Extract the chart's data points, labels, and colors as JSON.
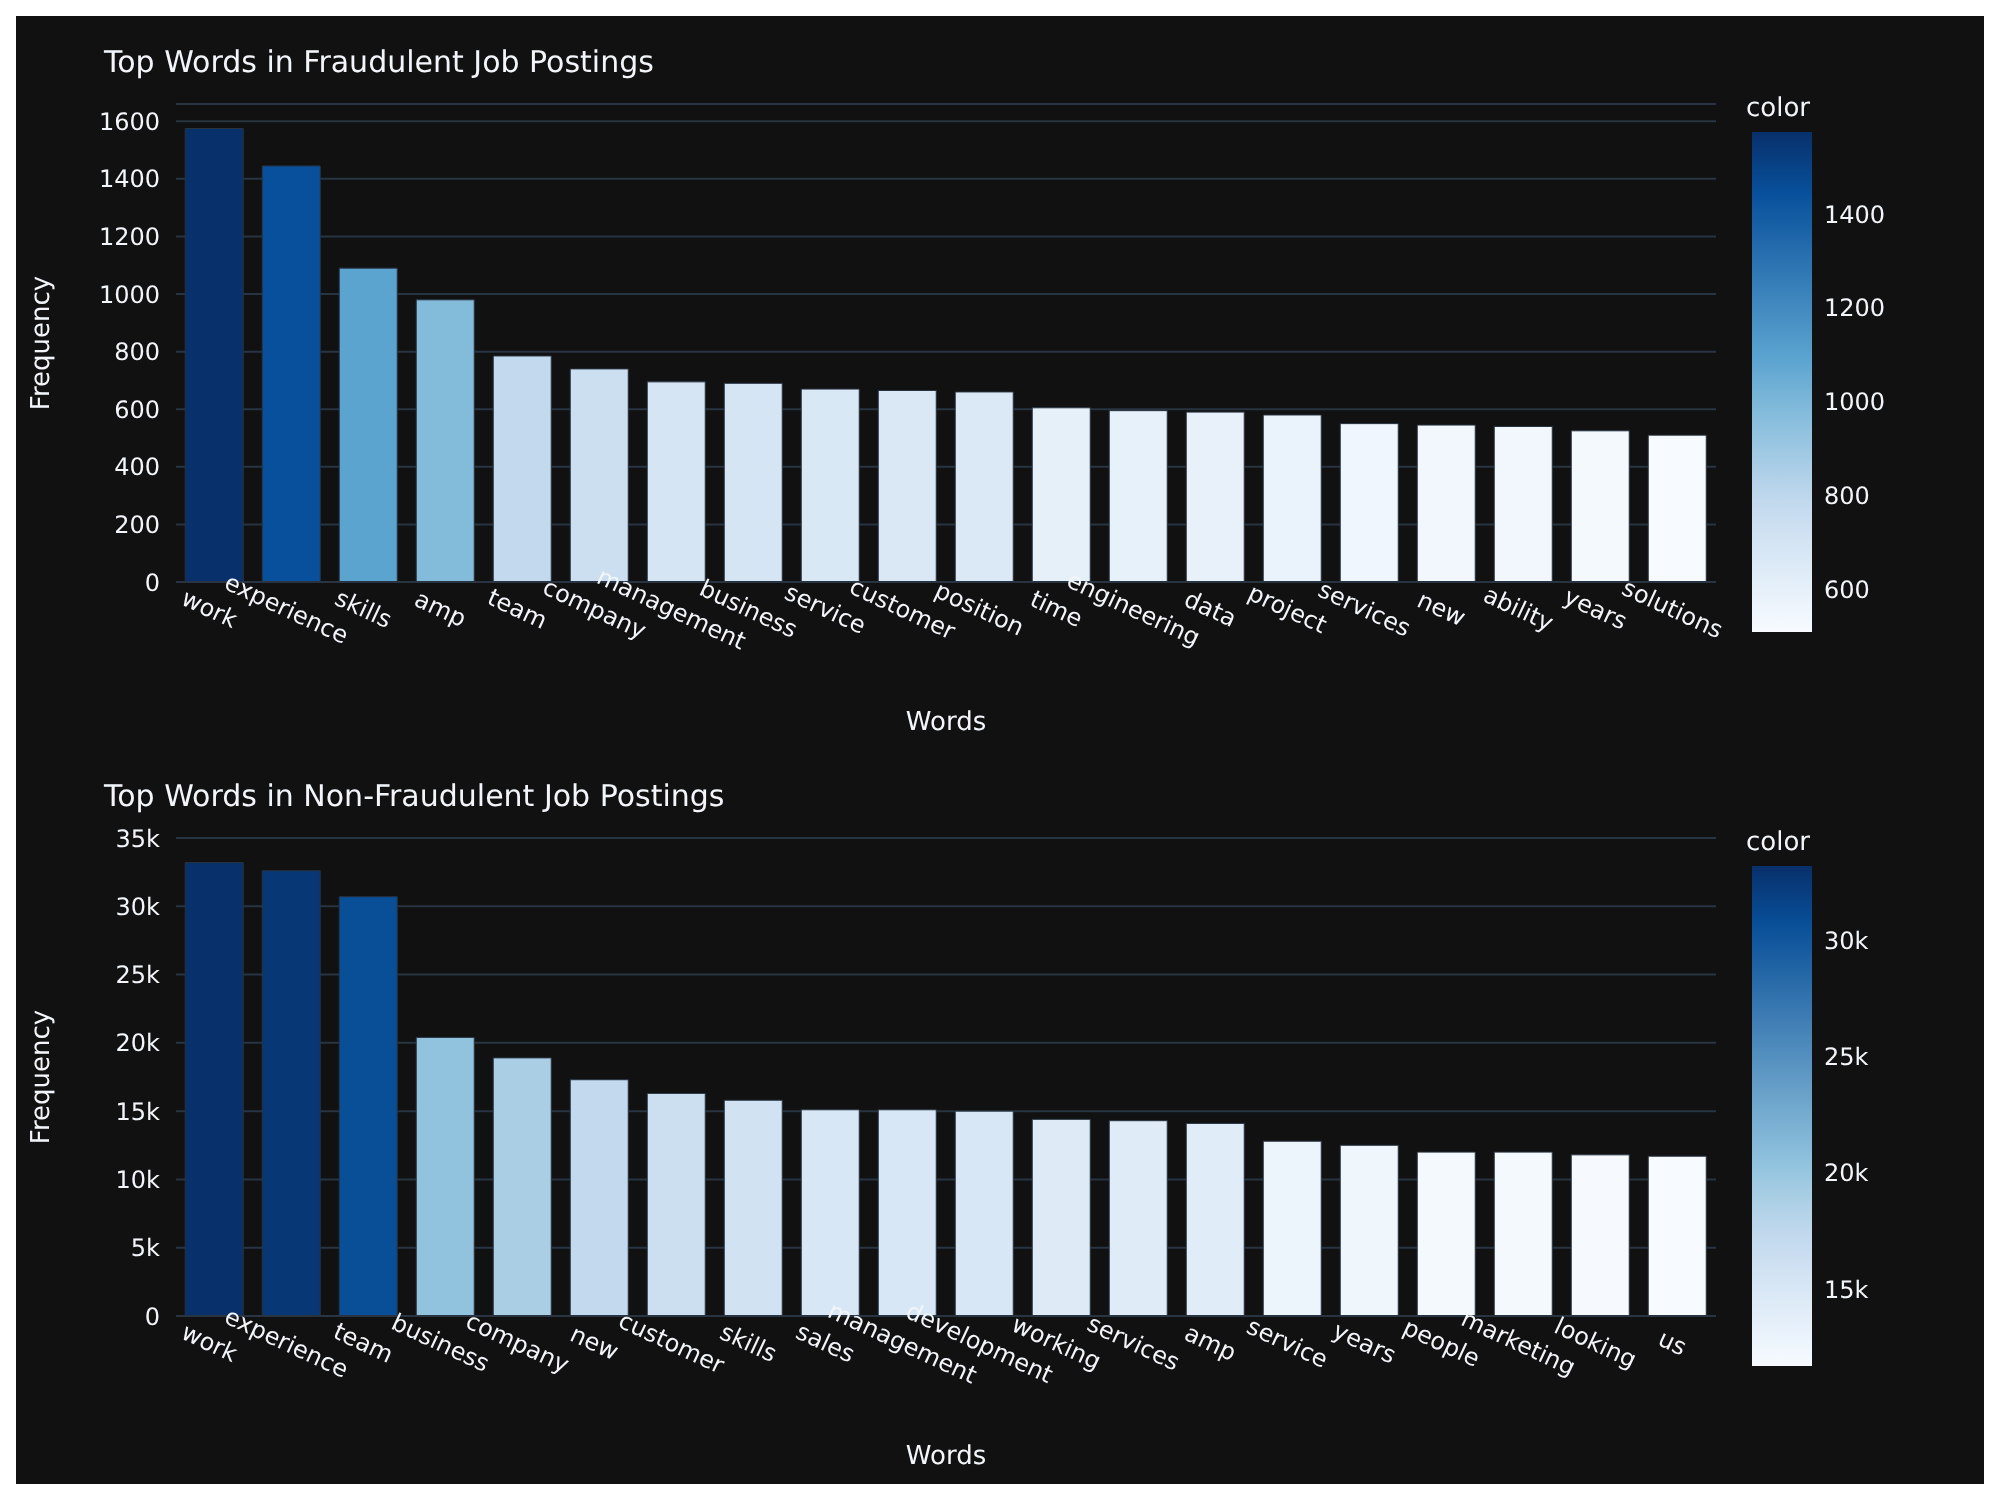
{
  "chart_data": [
    {
      "type": "bar",
      "title": "Top Words in Fraudulent Job Postings",
      "xlabel": "Words",
      "ylabel": "Frequency",
      "clabel": "color",
      "categories": [
        "work",
        "experience",
        "skills",
        "amp",
        "team",
        "company",
        "management",
        "business",
        "service",
        "customer",
        "position",
        "time",
        "engineering",
        "data",
        "project",
        "services",
        "new",
        "ability",
        "years",
        "solutions"
      ],
      "values": [
        1575,
        1445,
        1090,
        980,
        785,
        740,
        695,
        690,
        670,
        665,
        660,
        605,
        595,
        590,
        580,
        550,
        545,
        540,
        525,
        510
      ],
      "colors": [
        "#08306b",
        "#08509b",
        "#5ca4d0",
        "#83bbdb",
        "#c3d9ee",
        "#ccdff1",
        "#d5e5f4",
        "#d6e5f4",
        "#d9e8f5",
        "#dae8f6",
        "#dbe9f6",
        "#e5f0f9",
        "#e7f1fa",
        "#e8f1fa",
        "#eaf3fb",
        "#f0f6fd",
        "#f1f7fd",
        "#f1f7fd",
        "#f4f9fe",
        "#f7fbff"
      ],
      "ylim": [
        0,
        1660
      ],
      "yticks": [
        0,
        200,
        400,
        600,
        800,
        1000,
        1200,
        1400,
        1600
      ],
      "grid": "y",
      "clim": [
        510,
        1575
      ],
      "cticks": [
        600,
        800,
        1000,
        1200,
        1400
      ]
    },
    {
      "type": "bar",
      "title": "Top Words in Non-Fraudulent Job Postings",
      "xlabel": "Words",
      "ylabel": "Frequency",
      "clabel": "color",
      "categories": [
        "work",
        "experience",
        "team",
        "business",
        "company",
        "new",
        "customer",
        "skills",
        "sales",
        "management",
        "development",
        "working",
        "services",
        "amp",
        "service",
        "years",
        "people",
        "marketing",
        "looking",
        "us"
      ],
      "values": [
        33200,
        32600,
        30700,
        20400,
        18900,
        17300,
        16300,
        15800,
        15100,
        15100,
        15000,
        14400,
        14300,
        14100,
        12800,
        12500,
        12000,
        12000,
        11800,
        11700
      ],
      "colors": [
        "#08306b",
        "#083776",
        "#084f98",
        "#91c3de",
        "#aacfe5",
        "#c2d9ee",
        "#ccdff1",
        "#d1e2f3",
        "#d7e7f5",
        "#d7e7f5",
        "#d8e7f5",
        "#deebf7",
        "#dfebf7",
        "#e0ecf8",
        "#ecf4fc",
        "#eff6fc",
        "#f4f9fe",
        "#f4f9fe",
        "#f6fafe",
        "#f7fbff"
      ],
      "ylim": [
        0,
        35000
      ],
      "yticks": [
        0,
        {
          "value": 5000,
          "label": "5k"
        },
        {
          "value": 10000,
          "label": "10k"
        },
        {
          "value": 15000,
          "label": "15k"
        },
        {
          "value": 20000,
          "label": "20k"
        },
        {
          "value": 25000,
          "label": "25k"
        },
        {
          "value": 30000,
          "label": "30k"
        },
        {
          "value": 35000,
          "label": "35k"
        }
      ],
      "grid": "y",
      "clim": [
        11700,
        33200
      ],
      "cticks": [
        {
          "value": 15000,
          "label": "15k"
        },
        {
          "value": 20000,
          "label": "20k"
        },
        {
          "value": 25000,
          "label": "25k"
        },
        {
          "value": 30000,
          "label": "30k"
        }
      ]
    }
  ]
}
